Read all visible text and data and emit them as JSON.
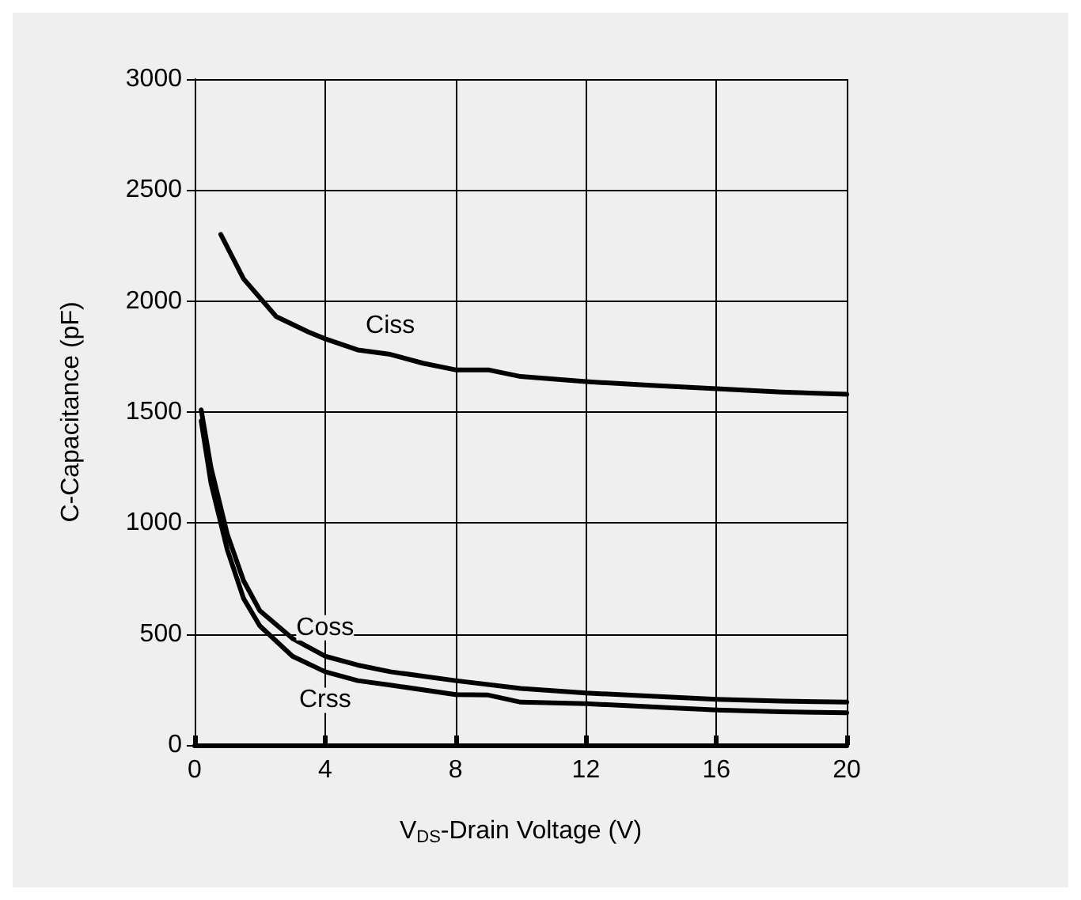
{
  "chart_data": {
    "type": "line",
    "xlabel": "V$_{DS}$-Drain Voltage (V)",
    "ylabel": "C-Capacitance (pF)",
    "xlim": [
      0,
      20
    ],
    "xticks": [
      0,
      4,
      8,
      12,
      16,
      20
    ],
    "ylim": [
      0,
      3000
    ],
    "yticks": [
      0,
      500,
      1000,
      1500,
      2000,
      2500,
      3000
    ],
    "grid": true,
    "legend": false,
    "marker": "none",
    "line_style": "solid",
    "series": [
      {
        "name": "Ciss",
        "color": "#000000",
        "x": [
          0.8,
          1.5,
          2.5,
          3.5,
          4,
          5,
          6,
          7,
          8,
          9,
          10,
          12,
          14,
          16,
          18,
          20
        ],
        "values": [
          2300,
          2100,
          1930,
          1860,
          1830,
          1780,
          1760,
          1720,
          1690,
          1690,
          1660,
          1637,
          1620,
          1605,
          1590,
          1580
        ]
      },
      {
        "name": "Coss",
        "color": "#000000",
        "x": [
          0.2,
          0.5,
          1,
          1.5,
          2,
          3,
          4,
          5,
          6,
          8,
          10,
          12,
          14,
          16,
          18,
          20
        ],
        "values": [
          1510,
          1250,
          950,
          740,
          605,
          480,
          400,
          360,
          330,
          290,
          255,
          234,
          220,
          206,
          198,
          193
        ]
      },
      {
        "name": "Crss",
        "color": "#000000",
        "x": [
          0.2,
          0.5,
          1,
          1.5,
          2,
          3,
          4,
          5,
          6,
          8,
          9,
          10,
          12,
          14,
          16,
          18,
          20
        ],
        "values": [
          1460,
          1180,
          880,
          660,
          536,
          400,
          330,
          290,
          270,
          227,
          225,
          193,
          186,
          172,
          158,
          150,
          145
        ]
      }
    ]
  }
}
